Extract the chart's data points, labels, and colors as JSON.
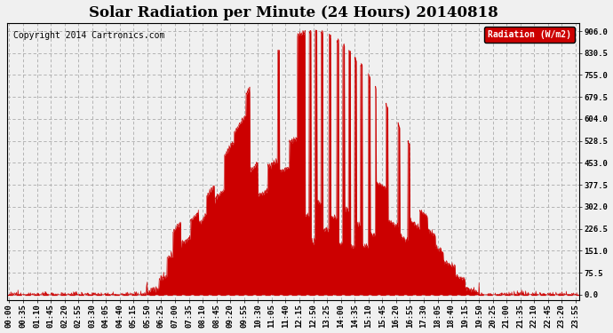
{
  "title": "Solar Radiation per Minute (24 Hours) 20140818",
  "copyright": "Copyright 2014 Cartronics.com",
  "ylabel": "Radiation (W/m2)",
  "yticks": [
    0.0,
    75.5,
    151.0,
    226.5,
    302.0,
    377.5,
    453.0,
    528.5,
    604.0,
    679.5,
    755.0,
    830.5,
    906.0
  ],
  "ylim": [
    -20,
    935
  ],
  "bar_color": "#cc0000",
  "legend_bg": "#cc0000",
  "legend_text_color": "#ffffff",
  "background_color": "#f0f0f0",
  "grid_color": "#aaaaaa",
  "dashed_zero_color": "#cc0000",
  "title_fontsize": 12,
  "tick_fontsize": 6.5,
  "copyright_fontsize": 7
}
